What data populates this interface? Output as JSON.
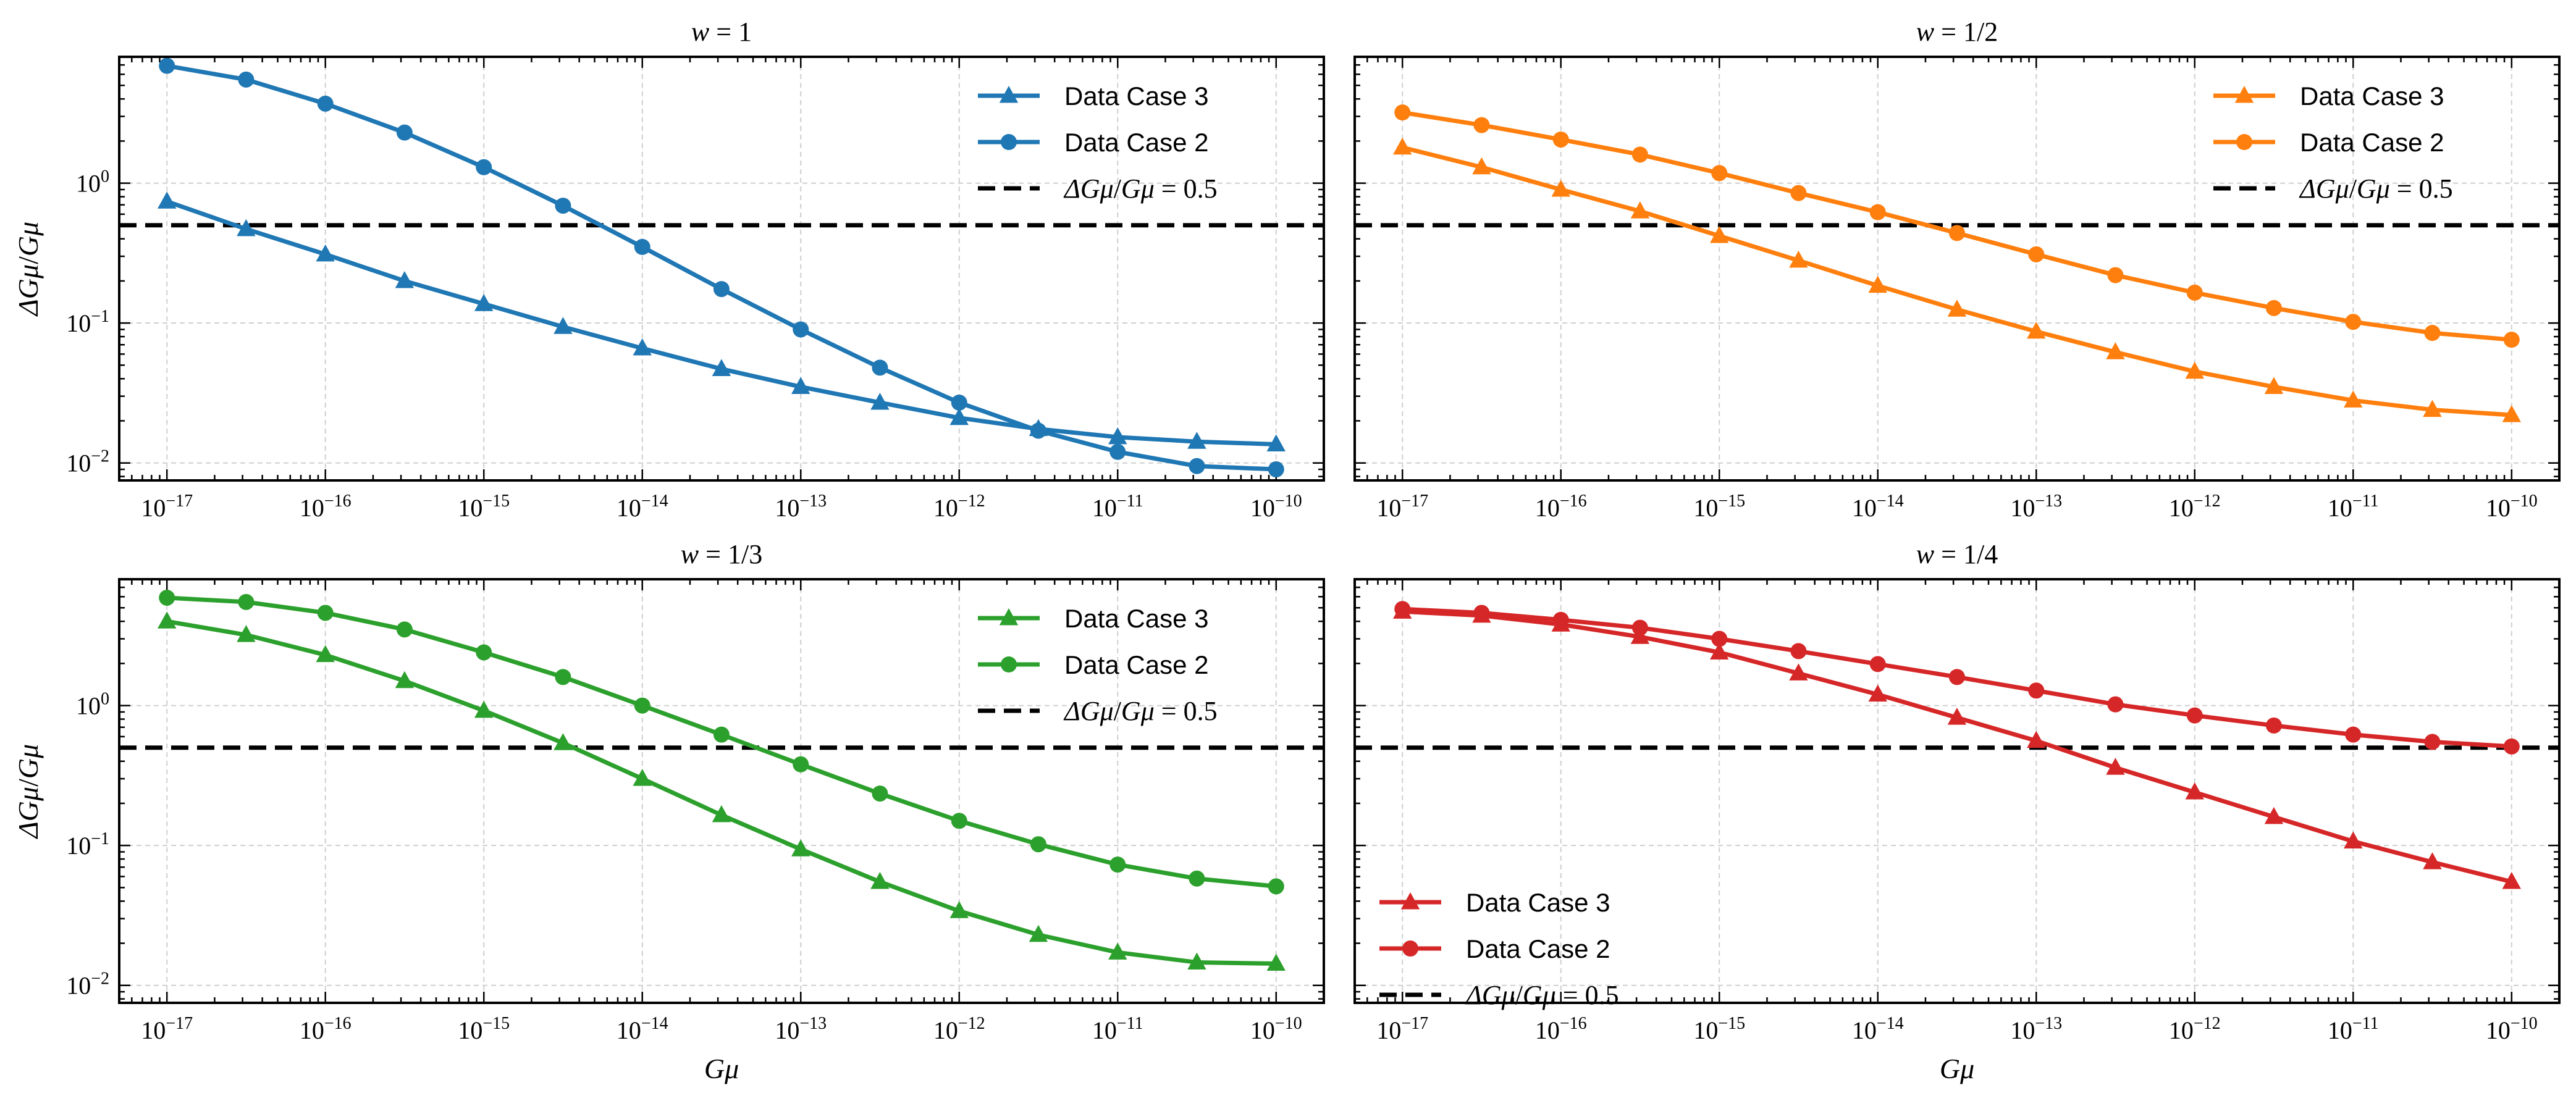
{
  "figure": {
    "shared_xlabel": "Gμ",
    "shared_ylabel": "ΔGμ/Gμ",
    "x_tick_exponents": [
      "−17",
      "−16",
      "−15",
      "−14",
      "−13",
      "−12",
      "−11",
      "−10"
    ],
    "y_tick_exponents": [
      "0",
      "−1",
      "−2"
    ]
  },
  "chart_data": [
    {
      "type": "line",
      "title": "w = 1",
      "xlabel": "",
      "ylabel": "ΔGμ/Gμ",
      "xscale": "log",
      "yscale": "log",
      "xlim": [
        5e-18,
        2e-10
      ],
      "ylim": [
        0.0075,
        8
      ],
      "grid": true,
      "legend_position": "top-right",
      "color": "#1f77b4",
      "x": [
        1e-17,
        3.16e-17,
        1e-16,
        3.16e-16,
        1e-15,
        3.16e-15,
        1e-14,
        3.16e-14,
        1e-13,
        3.16e-13,
        1e-12,
        3.16e-12,
        1e-11,
        3.16e-11,
        1e-10
      ],
      "series": [
        {
          "name": "Data Case 3",
          "marker": "triangle",
          "values": [
            0.74,
            0.47,
            0.31,
            0.2,
            0.137,
            0.094,
            0.066,
            0.047,
            0.035,
            0.027,
            0.021,
            0.0175,
            0.0153,
            0.0142,
            0.0136
          ]
        },
        {
          "name": "Data Case 2",
          "marker": "circle",
          "values": [
            6.9,
            5.5,
            3.7,
            2.3,
            1.3,
            0.69,
            0.35,
            0.175,
            0.09,
            0.048,
            0.027,
            0.017,
            0.012,
            0.0095,
            0.009
          ]
        }
      ],
      "reference_line": {
        "label": "ΔGμ/Gμ = 0.5",
        "value": 0.5
      }
    },
    {
      "type": "line",
      "title": "w = 1/2",
      "xlabel": "",
      "ylabel": "",
      "xscale": "log",
      "yscale": "log",
      "xlim": [
        5e-18,
        2e-10
      ],
      "ylim": [
        0.0075,
        8
      ],
      "grid": true,
      "legend_position": "top-right",
      "color": "#ff7f0e",
      "x": [
        1e-17,
        3.16e-17,
        1e-16,
        3.16e-16,
        1e-15,
        3.16e-15,
        1e-14,
        3.16e-14,
        1e-13,
        3.16e-13,
        1e-12,
        3.16e-12,
        1e-11,
        3.16e-11,
        1e-10
      ],
      "series": [
        {
          "name": "Data Case 3",
          "marker": "triangle",
          "values": [
            1.8,
            1.3,
            0.9,
            0.63,
            0.42,
            0.28,
            0.185,
            0.125,
            0.087,
            0.062,
            0.045,
            0.035,
            0.028,
            0.024,
            0.022
          ]
        },
        {
          "name": "Data Case 2",
          "marker": "circle",
          "values": [
            3.2,
            2.6,
            2.05,
            1.6,
            1.18,
            0.85,
            0.62,
            0.44,
            0.31,
            0.22,
            0.165,
            0.128,
            0.102,
            0.085,
            0.076
          ]
        }
      ],
      "reference_line": {
        "label": "ΔGμ/Gμ = 0.5",
        "value": 0.5
      }
    },
    {
      "type": "line",
      "title": "w = 1/3",
      "xlabel": "Gμ",
      "ylabel": "ΔGμ/Gμ",
      "xscale": "log",
      "yscale": "log",
      "xlim": [
        5e-18,
        2e-10
      ],
      "ylim": [
        0.0075,
        8
      ],
      "grid": true,
      "legend_position": "top-right",
      "color": "#2ca02c",
      "x": [
        1e-17,
        3.16e-17,
        1e-16,
        3.16e-16,
        1e-15,
        3.16e-15,
        1e-14,
        3.16e-14,
        1e-13,
        3.16e-13,
        1e-12,
        3.16e-12,
        1e-11,
        3.16e-11,
        1e-10
      ],
      "series": [
        {
          "name": "Data Case 3",
          "marker": "triangle",
          "values": [
            4.0,
            3.2,
            2.3,
            1.5,
            0.92,
            0.54,
            0.3,
            0.165,
            0.094,
            0.055,
            0.034,
            0.023,
            0.0172,
            0.0146,
            0.0143
          ]
        },
        {
          "name": "Data Case 2",
          "marker": "circle",
          "values": [
            5.9,
            5.5,
            4.6,
            3.5,
            2.4,
            1.6,
            1.0,
            0.62,
            0.38,
            0.235,
            0.15,
            0.102,
            0.073,
            0.058,
            0.051
          ]
        }
      ],
      "reference_line": {
        "label": "ΔGμ/Gμ = 0.5",
        "value": 0.5
      }
    },
    {
      "type": "line",
      "title": "w = 1/4",
      "xlabel": "Gμ",
      "ylabel": "",
      "xscale": "log",
      "yscale": "log",
      "xlim": [
        5e-18,
        2e-10
      ],
      "ylim": [
        0.0075,
        8
      ],
      "grid": true,
      "legend_position": "bottom-left",
      "color": "#d62728",
      "x": [
        1e-17,
        3.16e-17,
        1e-16,
        3.16e-16,
        1e-15,
        3.16e-15,
        1e-14,
        3.16e-14,
        1e-13,
        3.16e-13,
        1e-12,
        3.16e-12,
        1e-11,
        3.16e-11,
        1e-10
      ],
      "series": [
        {
          "name": "Data Case 3",
          "marker": "triangle",
          "values": [
            4.7,
            4.4,
            3.8,
            3.1,
            2.4,
            1.7,
            1.2,
            0.82,
            0.56,
            0.36,
            0.24,
            0.16,
            0.107,
            0.076,
            0.055
          ]
        },
        {
          "name": "Data Case 2",
          "marker": "circle",
          "values": [
            4.9,
            4.6,
            4.1,
            3.6,
            3.0,
            2.45,
            1.98,
            1.6,
            1.28,
            1.02,
            0.85,
            0.72,
            0.62,
            0.55,
            0.51
          ]
        }
      ],
      "reference_line": {
        "label": "ΔGμ/Gμ = 0.5",
        "value": 0.5
      }
    }
  ]
}
